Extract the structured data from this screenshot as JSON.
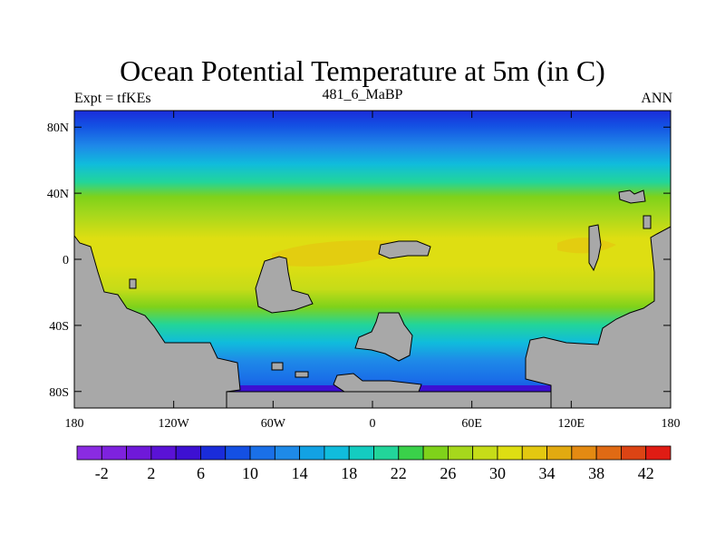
{
  "header": {
    "title": "Ocean Potential Temperature at 5m (in C)",
    "left": "Expt = tfKEs",
    "center": "481_6_MaBP",
    "right": "ANN"
  },
  "map": {
    "lon_ticks": [
      "180",
      "120W",
      "60W",
      "0",
      "60E",
      "120E",
      "180"
    ],
    "lat_ticks": [
      "80N",
      "40N",
      "0",
      "40S",
      "80S"
    ],
    "lon_range": [
      -180,
      180
    ],
    "lat_range": [
      -90,
      90
    ],
    "land_color": "#a8a8a8"
  },
  "colorbar": {
    "labels": [
      "-2",
      "2",
      "6",
      "10",
      "14",
      "18",
      "22",
      "26",
      "30",
      "34",
      "38",
      "42"
    ],
    "colors": [
      "#8a2be2",
      "#7e22de",
      "#6f19d9",
      "#5a12d6",
      "#3d10d2",
      "#1a2cda",
      "#1450e3",
      "#1a70e8",
      "#1e8ae8",
      "#12a2e4",
      "#10bcdc",
      "#14ccc0",
      "#22d59a",
      "#3ad14a",
      "#7fd21a",
      "#a6d81c",
      "#c6dc18",
      "#dede12",
      "#e3c810",
      "#e2aa10",
      "#e48a12",
      "#e06a14",
      "#dc4414",
      "#e01c14"
    ]
  }
}
